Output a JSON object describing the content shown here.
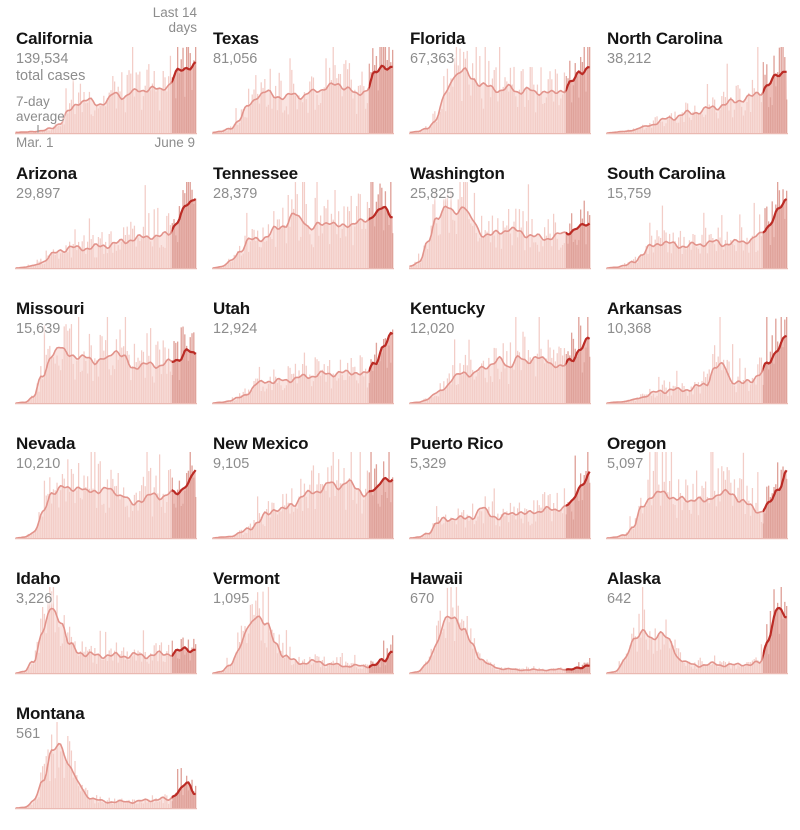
{
  "colors": {
    "bar": "#f3cdc7",
    "area": "#fae4e1",
    "bar_recent": "#dfa29a",
    "area_recent": "#edbcb6",
    "line": "#e2938b",
    "line_recent": "#bb2b25",
    "baseline": "#eab9b2",
    "tick": "#9b9b9b",
    "title_text": "#141414",
    "muted_text": "#8d8d8d"
  },
  "chart_data": {
    "type": "area",
    "title": "",
    "x_range": [
      "Mar. 1",
      "June 9"
    ],
    "highlight_label": "Last 14 days",
    "avg_label": "7-day average",
    "highlight_days": 14,
    "days_total": 101,
    "trend_scale": "7-day average, 0-100 relative to each panel height",
    "series": [
      {
        "name": "California",
        "total": "139,534",
        "total_note": "total cases",
        "trend": [
          1,
          1,
          2,
          3,
          6,
          14,
          28,
          40,
          42,
          37,
          40,
          50,
          47,
          52,
          55,
          57,
          55,
          62,
          78,
          84,
          88
        ]
      },
      {
        "name": "Texas",
        "total": "81,056",
        "trend": [
          1,
          2,
          6,
          18,
          35,
          48,
          52,
          48,
          45,
          50,
          47,
          52,
          56,
          60,
          62,
          58,
          48,
          55,
          75,
          86,
          84
        ]
      },
      {
        "name": "Florida",
        "total": "67,363",
        "trend": [
          1,
          2,
          6,
          20,
          50,
          75,
          80,
          70,
          62,
          58,
          55,
          58,
          53,
          56,
          51,
          54,
          50,
          55,
          65,
          78,
          86
        ]
      },
      {
        "name": "North Carolina",
        "total": "38,212",
        "trend": [
          0,
          1,
          2,
          4,
          7,
          11,
          15,
          19,
          22,
          25,
          27,
          30,
          33,
          36,
          40,
          43,
          46,
          52,
          62,
          74,
          82
        ]
      },
      {
        "name": "Arizona",
        "total": "29,897",
        "trend": [
          0,
          1,
          3,
          8,
          16,
          23,
          26,
          25,
          26,
          27,
          29,
          31,
          34,
          37,
          39,
          41,
          40,
          45,
          60,
          80,
          92
        ]
      },
      {
        "name": "Tennessee",
        "total": "28,379",
        "trend": [
          0,
          2,
          8,
          22,
          35,
          37,
          40,
          50,
          55,
          68,
          62,
          50,
          56,
          60,
          52,
          56,
          58,
          60,
          70,
          76,
          68
        ]
      },
      {
        "name": "Washington",
        "total": "25,825",
        "trend": [
          2,
          8,
          30,
          65,
          78,
          70,
          80,
          60,
          44,
          42,
          46,
          50,
          47,
          43,
          40,
          38,
          40,
          44,
          48,
          52,
          58
        ]
      },
      {
        "name": "South Carolina",
        "total": "15,759",
        "trend": [
          0,
          1,
          3,
          8,
          18,
          28,
          33,
          31,
          29,
          28,
          30,
          32,
          33,
          31,
          32,
          34,
          36,
          42,
          55,
          72,
          88
        ]
      },
      {
        "name": "Missouri",
        "total": "15,639",
        "trend": [
          0,
          1,
          8,
          35,
          62,
          70,
          64,
          56,
          60,
          52,
          56,
          68,
          58,
          46,
          48,
          50,
          48,
          52,
          56,
          66,
          62
        ]
      },
      {
        "name": "Utah",
        "total": "12,924",
        "trend": [
          0,
          1,
          3,
          7,
          14,
          24,
          29,
          27,
          29,
          31,
          33,
          35,
          37,
          37,
          39,
          38,
          40,
          36,
          52,
          72,
          88
        ]
      },
      {
        "name": "Kentucky",
        "total": "12,020",
        "trend": [
          0,
          1,
          5,
          12,
          22,
          32,
          40,
          36,
          44,
          50,
          55,
          47,
          58,
          52,
          60,
          54,
          50,
          46,
          56,
          70,
          82
        ]
      },
      {
        "name": "Arkansas",
        "total": "10,368",
        "trend": [
          0,
          1,
          2,
          4,
          8,
          12,
          15,
          17,
          16,
          18,
          20,
          24,
          45,
          48,
          28,
          24,
          30,
          36,
          52,
          70,
          85
        ]
      },
      {
        "name": "Nevada",
        "total": "10,210",
        "trend": [
          0,
          1,
          8,
          30,
          58,
          65,
          62,
          66,
          58,
          61,
          63,
          58,
          55,
          42,
          50,
          55,
          52,
          58,
          56,
          70,
          85
        ]
      },
      {
        "name": "New Mexico",
        "total": "9,105",
        "trend": [
          0,
          1,
          2,
          6,
          12,
          20,
          30,
          38,
          36,
          44,
          54,
          58,
          62,
          70,
          66,
          72,
          64,
          56,
          60,
          78,
          72
        ]
      },
      {
        "name": "Puerto Rico",
        "total": "5,329",
        "trend": [
          0,
          1,
          6,
          18,
          24,
          26,
          24,
          28,
          38,
          30,
          26,
          30,
          34,
          30,
          34,
          37,
          35,
          40,
          44,
          68,
          82
        ]
      },
      {
        "name": "Oregon",
        "total": "5,097",
        "trend": [
          0,
          1,
          4,
          15,
          40,
          55,
          58,
          54,
          50,
          47,
          52,
          45,
          55,
          58,
          56,
          48,
          40,
          34,
          42,
          62,
          85
        ]
      },
      {
        "name": "Idaho",
        "total": "3,226",
        "trend": [
          0,
          2,
          15,
          55,
          82,
          68,
          36,
          27,
          24,
          22,
          23,
          22,
          22,
          23,
          22,
          23,
          24,
          25,
          27,
          31,
          30
        ]
      },
      {
        "name": "Vermont",
        "total": "1,095",
        "trend": [
          0,
          2,
          10,
          35,
          58,
          75,
          62,
          38,
          22,
          15,
          13,
          14,
          14,
          11,
          10,
          9,
          9,
          9,
          10,
          16,
          30
        ]
      },
      {
        "name": "Hawaii",
        "total": "670",
        "trend": [
          0,
          2,
          12,
          40,
          68,
          72,
          55,
          35,
          18,
          9,
          6,
          5,
          4,
          4,
          4,
          4,
          4,
          5,
          5,
          6,
          12
        ]
      },
      {
        "name": "Alaska",
        "total": "642",
        "trend": [
          0,
          2,
          15,
          45,
          52,
          44,
          52,
          40,
          20,
          12,
          10,
          10,
          12,
          10,
          10,
          12,
          10,
          14,
          45,
          82,
          75
        ]
      },
      {
        "name": "Montana",
        "total": "561",
        "trend": [
          0,
          1,
          8,
          35,
          72,
          80,
          55,
          30,
          16,
          10,
          8,
          8,
          8,
          8,
          9,
          10,
          12,
          10,
          22,
          30,
          20
        ]
      }
    ]
  }
}
